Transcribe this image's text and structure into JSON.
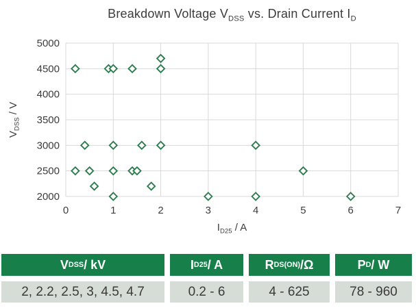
{
  "chart": {
    "title_parts": [
      {
        "t": "Breakdown Voltage V"
      },
      {
        "t": "DSS",
        "sub": true
      },
      {
        "t": " vs. Drain Current I"
      },
      {
        "t": "D",
        "sub": true
      }
    ]
  },
  "chart_data": {
    "type": "scatter",
    "title": "Breakdown Voltage VDSS vs. Drain Current ID",
    "xlabel": "ID25 / A",
    "ylabel": "VDSS / V",
    "xlabel_parts": [
      {
        "t": "I"
      },
      {
        "t": "D25",
        "sub": true
      },
      {
        "t": " / A"
      }
    ],
    "ylabel_parts": [
      {
        "t": "V"
      },
      {
        "t": "DSS",
        "sub": true
      },
      {
        "t": " / V"
      }
    ],
    "xlim": [
      0,
      7
    ],
    "ylim": [
      2000,
      5000
    ],
    "xticks": [
      0,
      1,
      2,
      3,
      4,
      5,
      6,
      7
    ],
    "yticks": [
      2000,
      2500,
      3000,
      3500,
      4000,
      4500,
      5000
    ],
    "grid": true,
    "legend": "none",
    "marker": "open-diamond",
    "marker_color": "#2e7d4f",
    "marker_fill": "#ffffff",
    "points": [
      {
        "x": 0.2,
        "y": 4500
      },
      {
        "x": 0.9,
        "y": 4500
      },
      {
        "x": 1.0,
        "y": 4500
      },
      {
        "x": 1.4,
        "y": 4500
      },
      {
        "x": 2.0,
        "y": 4500
      },
      {
        "x": 2.0,
        "y": 4700
      },
      {
        "x": 0.4,
        "y": 3000
      },
      {
        "x": 1.0,
        "y": 3000
      },
      {
        "x": 1.6,
        "y": 3000
      },
      {
        "x": 2.0,
        "y": 3000
      },
      {
        "x": 4.0,
        "y": 3000
      },
      {
        "x": 0.2,
        "y": 2500
      },
      {
        "x": 0.5,
        "y": 2500
      },
      {
        "x": 1.0,
        "y": 2500
      },
      {
        "x": 1.4,
        "y": 2500
      },
      {
        "x": 1.5,
        "y": 2500
      },
      {
        "x": 5.0,
        "y": 2500
      },
      {
        "x": 0.6,
        "y": 2200
      },
      {
        "x": 1.8,
        "y": 2200
      },
      {
        "x": 1.0,
        "y": 2000
      },
      {
        "x": 3.0,
        "y": 2000
      },
      {
        "x": 4.0,
        "y": 2000
      },
      {
        "x": 6.0,
        "y": 2000
      }
    ]
  },
  "colors": {
    "header_bg": "#17804a",
    "header_text": "#ffffff",
    "row_bg": "#d6ddd7",
    "grid": "#d9d9d9",
    "axis_text": "#3c3c3c"
  },
  "table": {
    "columns": [
      {
        "header_parts": [
          {
            "t": "V"
          },
          {
            "t": "DSS",
            "sub": true
          },
          {
            "t": " / kV"
          }
        ],
        "header": "VDSS / kV",
        "value": "2, 2.2, 2.5, 3, 4.5, 4.7"
      },
      {
        "header_parts": [
          {
            "t": "I"
          },
          {
            "t": "D25",
            "sub": true
          },
          {
            "t": " / A"
          }
        ],
        "header": "ID25 / A",
        "value": "0.2 - 6"
      },
      {
        "header_parts": [
          {
            "t": "R"
          },
          {
            "t": "DS(ON)",
            "sub": true
          },
          {
            "t": " /Ω"
          }
        ],
        "header": "RDS(ON) /Ω",
        "value": "4 - 625"
      },
      {
        "header_parts": [
          {
            "t": "P"
          },
          {
            "t": "D",
            "sub": true
          },
          {
            "t": " / W"
          }
        ],
        "header": "PD / W",
        "value": "78 - 960"
      }
    ]
  }
}
